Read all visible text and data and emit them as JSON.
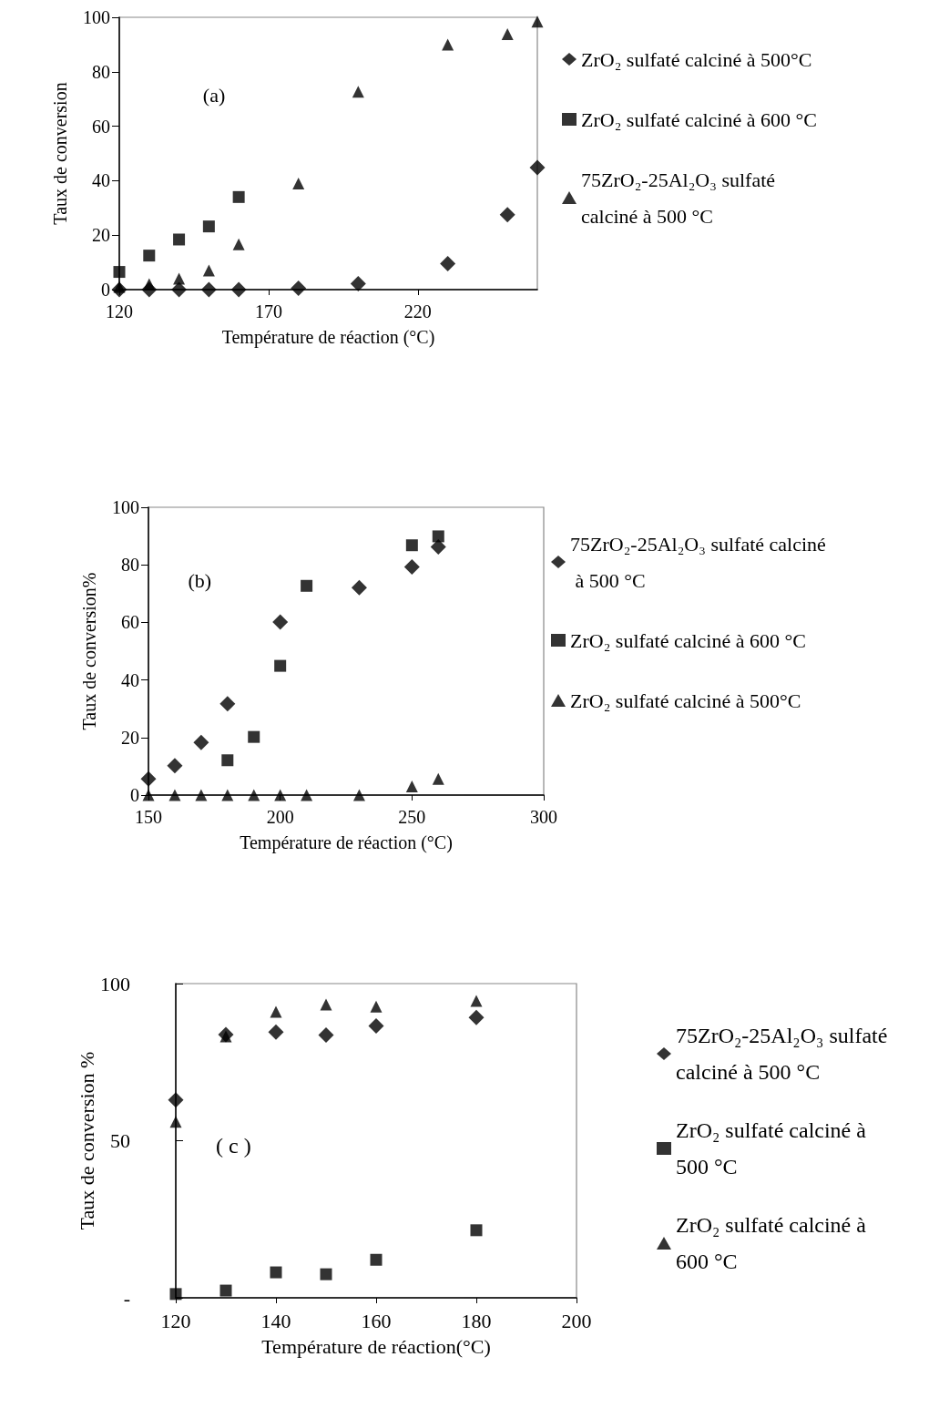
{
  "chart_data": [
    {
      "type": "scatter",
      "xlabel": "Température de réaction (°C)",
      "ylabel": "Taux de conversion",
      "annotations": [
        "(a)"
      ],
      "xlim": [
        120,
        260
      ],
      "xticks": [
        120,
        170,
        220
      ],
      "ylim": [
        0,
        100
      ],
      "yticks": [
        0,
        20,
        40,
        60,
        80,
        100
      ],
      "legend": "right",
      "grid": false,
      "series": [
        {
          "name": "ZrO₂ sulfaté calciné à 500°C",
          "color": "#000000",
          "marker": "diamond",
          "x": [
            120,
            130,
            140,
            150,
            160,
            180,
            200,
            230,
            250,
            260
          ],
          "values": [
            0,
            0,
            0,
            0,
            0,
            0.5,
            2.2,
            9.5,
            27.5,
            44.8
          ]
        },
        {
          "name": "ZrO₂ sulfaté calciné à 600 °C",
          "color": "#000000",
          "marker": "square",
          "x": [
            120,
            130,
            140,
            150,
            160
          ],
          "values": [
            6.5,
            12.5,
            18.4,
            23.2,
            34
          ]
        },
        {
          "name": "75ZrO₂-25Al₂O₃ sulfaté calciné à 500 °C",
          "color": "#000000",
          "marker": "triangle",
          "x": [
            120,
            130,
            140,
            150,
            160,
            180,
            200,
            230,
            250,
            260
          ],
          "values": [
            1,
            2,
            4,
            7,
            16.6,
            39,
            72.7,
            90,
            93.8,
            98.4
          ]
        }
      ]
    },
    {
      "type": "scatter",
      "xlabel": "Température de réaction (°C)",
      "ylabel": "Taux de conversion%",
      "annotations": [
        "(b)"
      ],
      "xlim": [
        150,
        300
      ],
      "xticks": [
        150,
        200,
        250,
        300
      ],
      "ylim": [
        0,
        100
      ],
      "yticks": [
        0,
        20,
        40,
        60,
        80,
        100
      ],
      "legend": "right",
      "grid": false,
      "series": [
        {
          "name": "75ZrO₂-25Al₂O₃ sulfaté calciné à 500 °C",
          "color": "#000000",
          "marker": "diamond",
          "x": [
            150,
            160,
            170,
            180,
            200,
            230,
            250,
            260
          ],
          "values": [
            5.6,
            10.2,
            18.3,
            31.7,
            60.1,
            72.1,
            79.3,
            86.2
          ]
        },
        {
          "name": "ZrO₂ sulfaté calciné à 600 °C",
          "color": "#000000",
          "marker": "square",
          "x": [
            180,
            190,
            200,
            210,
            250,
            260
          ],
          "values": [
            12.1,
            20.2,
            44.9,
            72.7,
            86.8,
            89.9
          ]
        },
        {
          "name": "ZrO₂ sulfaté calciné à 500°C",
          "color": "#000000",
          "marker": "triangle",
          "x": [
            150,
            160,
            170,
            180,
            190,
            200,
            210,
            230,
            250,
            260
          ],
          "values": [
            0,
            0,
            0,
            0,
            0,
            0,
            0,
            0,
            3,
            5.6
          ]
        }
      ]
    },
    {
      "type": "scatter",
      "xlabel": "Température de réaction(°C)",
      "ylabel": "Taux de conversion %",
      "annotations": [
        "( c )"
      ],
      "xlim": [
        120,
        200
      ],
      "xticks": [
        120,
        140,
        160,
        180,
        200
      ],
      "ylim": [
        0,
        100
      ],
      "yticks": [
        {
          "value": 0,
          "label": "-"
        },
        50,
        100
      ],
      "legend": "right",
      "grid": false,
      "series": [
        {
          "name": "75ZrO₂-25Al₂O₃ sulfaté calciné à 500 °C",
          "color": "#000000",
          "marker": "diamond",
          "x": [
            120,
            130,
            140,
            150,
            160,
            180
          ],
          "values": [
            63,
            83.8,
            84.6,
            83.6,
            86.5,
            89.2
          ]
        },
        {
          "name": "ZrO₂ sulfaté calciné à 500 °C",
          "color": "#000000",
          "marker": "square",
          "x": [
            120,
            130,
            140,
            150,
            160,
            180
          ],
          "values": [
            1.2,
            2.3,
            8.1,
            7.5,
            12.1,
            21.5
          ]
        },
        {
          "name": "ZrO₂ sulfaté calciné à 600 °C",
          "color": "#000000",
          "marker": "triangle",
          "x": [
            120,
            130,
            140,
            150,
            160,
            180
          ],
          "values": [
            56,
            83.2,
            91,
            93.3,
            92.7,
            94.5
          ]
        }
      ]
    }
  ]
}
